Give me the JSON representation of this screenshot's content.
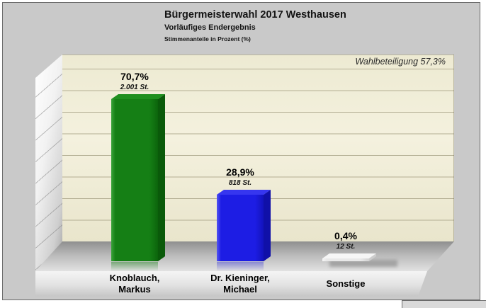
{
  "header": {
    "title": "Bürgermeisterwahl 2017 Westhausen",
    "subtitle": "Vorläufiges Endergebnis",
    "note": "Stimmenanteile in Prozent (%)"
  },
  "wall": {
    "turnout": "Wahlbeteiligung 57,3%"
  },
  "bars": [
    {
      "pct": "70,7%",
      "votes": "2.001 St.",
      "name1": "Knoblauch,",
      "name2": "Markus",
      "colors": {
        "edge": "#3aa33a",
        "front": "#157f15",
        "frontDark": "#0c650c",
        "top": "#1f8f1f",
        "side": "#0a5a0a"
      },
      "refl": "rgba(21,127,21,0.45)"
    },
    {
      "pct": "28,9%",
      "votes": "818 St.",
      "name1": "Dr. Kieninger,",
      "name2": "Michael",
      "colors": {
        "edge": "#5555f2",
        "front": "#1d1de4",
        "frontDark": "#1313bc",
        "top": "#3636ef",
        "side": "#1010a8"
      },
      "refl": "rgba(40,40,220,0.40)"
    },
    {
      "pct": "0,4%",
      "votes": "12 St.",
      "name1": "Sonstige",
      "name2": "",
      "colors": {
        "edge": "#f6f6f6",
        "front": "#e8e8e8",
        "frontDark": "#d2d2d2",
        "top": "#f6f6f6",
        "side": "#cccccc"
      },
      "refl": "rgba(150,150,150,0)"
    }
  ],
  "chart_data": {
    "type": "bar",
    "title": "Bürgermeisterwahl 2017 Westhausen",
    "subtitle": "Vorläufiges Endergebnis",
    "ylabel": "Stimmenanteile in Prozent (%)",
    "turnout_percent": 57.3,
    "categories": [
      "Knoblauch, Markus",
      "Dr. Kieninger, Michael",
      "Sonstige"
    ],
    "values": [
      70.7,
      28.9,
      0.4
    ],
    "votes": [
      2001,
      818,
      12
    ],
    "value_labels": [
      "70,7%",
      "28,9%",
      "0,4%"
    ],
    "votes_labels": [
      "2.001 St.",
      "818 St.",
      "12 St."
    ],
    "bar_colors": [
      "#157f15",
      "#1d1de4",
      "#e8e8e8"
    ],
    "ylim": [
      0,
      90
    ],
    "gridline_step_percent": 10,
    "grid": "horizontal",
    "legend": "none",
    "style": "3d-bars-on-stage"
  }
}
